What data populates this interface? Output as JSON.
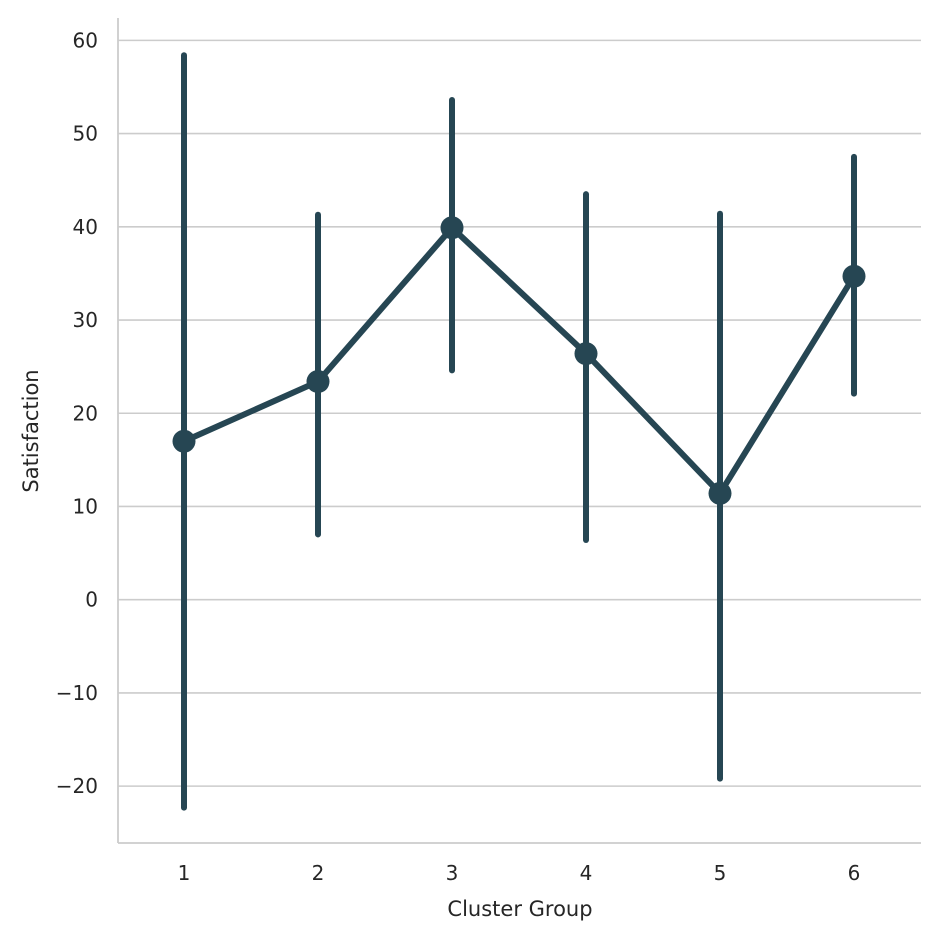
{
  "chart_data": {
    "type": "line",
    "title": "",
    "xlabel": "Cluster Group",
    "ylabel": "Satisfaction",
    "categories": [
      "1",
      "2",
      "3",
      "4",
      "5",
      "6"
    ],
    "series": [
      {
        "values": [
          17.0,
          23.4,
          39.9,
          26.4,
          11.4,
          34.7
        ],
        "error_low": [
          -22.3,
          7.0,
          24.6,
          6.4,
          -19.2,
          22.1
        ],
        "error_high": [
          58.4,
          41.3,
          53.6,
          43.5,
          41.4,
          47.5
        ],
        "color": "#264653"
      }
    ],
    "yticks": [
      -20,
      -10,
      0,
      10,
      20,
      30,
      40,
      50,
      60
    ],
    "ytick_labels": [
      "−20",
      "−10",
      "0",
      "10",
      "20",
      "30",
      "40",
      "50",
      "60"
    ],
    "ylim": [
      -26.1,
      62.4
    ],
    "grid": "horizontal",
    "legend": "none"
  }
}
